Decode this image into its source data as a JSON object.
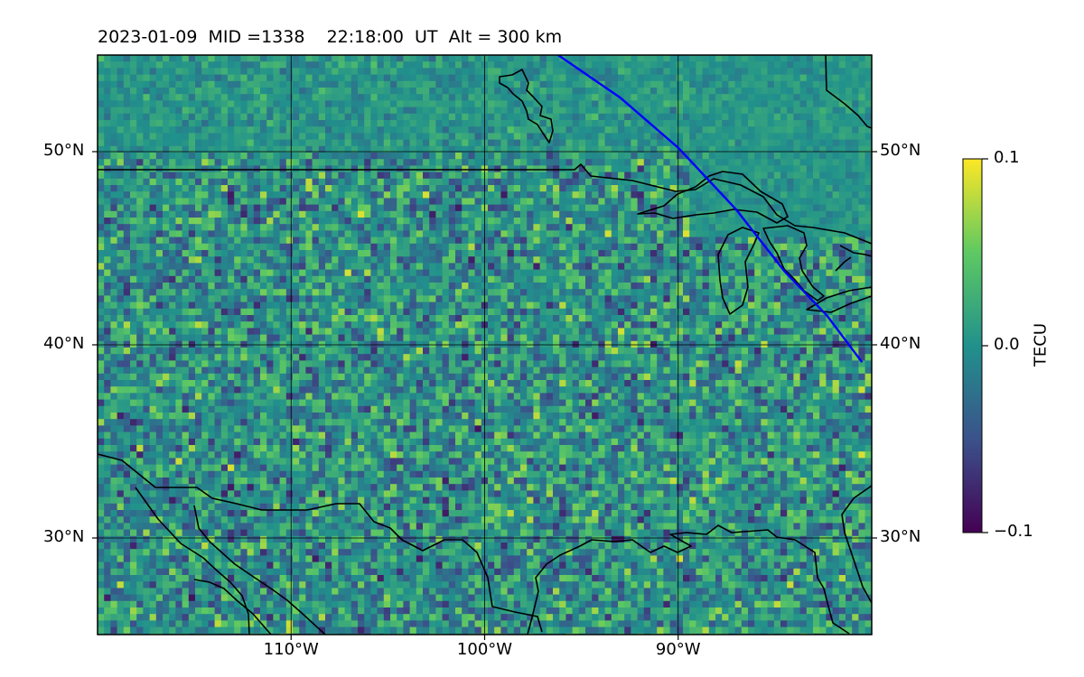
{
  "header": {
    "title": "2023-01-09  MID =1338    22:18:00  UT  Alt = 300 km"
  },
  "map": {
    "extent": {
      "lon_min": -120,
      "lon_max": -80,
      "lat_min": 25,
      "lat_max": 55
    },
    "lat_labels": [
      "50°N",
      "40°N",
      "30°N"
    ],
    "lat_values": [
      50,
      40,
      30
    ],
    "lon_labels": [
      "110°W",
      "100°W",
      "90°W"
    ],
    "lon_values": [
      -110,
      -100,
      -90
    ],
    "grid": true,
    "colormap": "viridis",
    "overlays": [
      "coastlines",
      "country-borders",
      "great-lakes",
      "satellite-track"
    ],
    "track_color": "#0000ff",
    "track_points": [
      [
        -96.2,
        55.0
      ],
      [
        -93.0,
        52.8
      ],
      [
        -90.0,
        50.2
      ],
      [
        -87.0,
        47.0
      ],
      [
        -84.5,
        43.8
      ],
      [
        -82.3,
        41.5
      ],
      [
        -80.5,
        39.1
      ]
    ]
  },
  "colorbar": {
    "label": "TECU",
    "ticks": [
      "0.1",
      "0.0",
      "−0.1"
    ],
    "tick_values": [
      0.1,
      0.0,
      -0.1
    ],
    "vmin": -0.1,
    "vmax": 0.1
  }
}
